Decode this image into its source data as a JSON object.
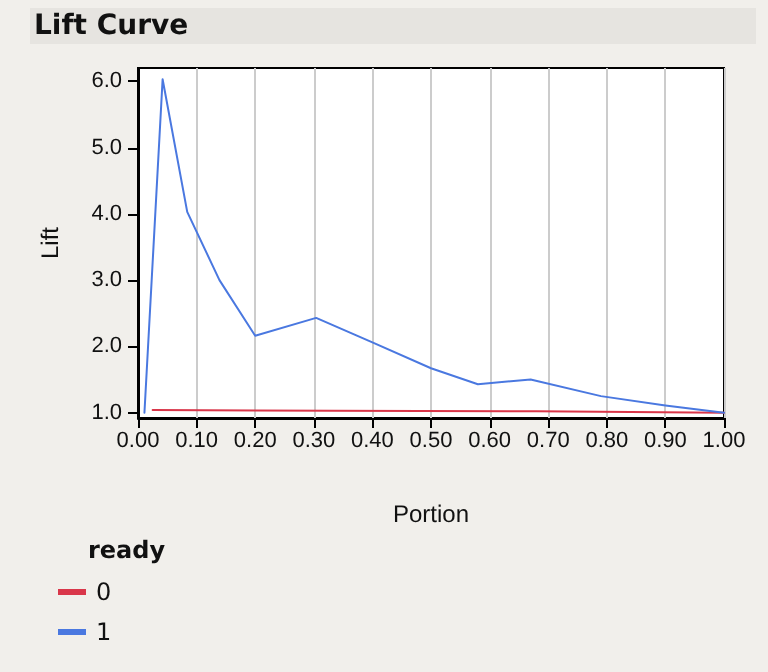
{
  "chart_data": {
    "type": "line",
    "title": "Lift Curve",
    "xlabel": "Portion",
    "ylabel": "Lift",
    "legend_title": "ready",
    "series": [
      {
        "name": "0",
        "color": "#d9364a",
        "x": [
          0.025,
          0.33,
          0.68,
          1.0
        ],
        "values": [
          1.04,
          1.03,
          1.02,
          1.0
        ]
      },
      {
        "name": "1",
        "color": "#4a78e0",
        "x": [
          0.011,
          0.042,
          0.084,
          0.139,
          0.2,
          0.304,
          0.4,
          0.5,
          0.58,
          0.67,
          0.79,
          0.9,
          1.0
        ],
        "values": [
          1.0,
          6.03,
          4.03,
          3.0,
          2.16,
          2.43,
          2.06,
          1.67,
          1.43,
          1.5,
          1.25,
          1.11,
          1.0
        ]
      }
    ],
    "xlim": [
      0,
      1
    ],
    "ylim": [
      0.92,
      6.2
    ],
    "xticks": [
      {
        "value": 0,
        "label": "0.00"
      },
      {
        "value": 0.1,
        "label": "0.10"
      },
      {
        "value": 0.2,
        "label": "0.20"
      },
      {
        "value": 0.3,
        "label": "0.30"
      },
      {
        "value": 0.4,
        "label": "0.40"
      },
      {
        "value": 0.5,
        "label": "0.50"
      },
      {
        "value": 0.6,
        "label": "0.60"
      },
      {
        "value": 0.7,
        "label": "0.70"
      },
      {
        "value": 0.8,
        "label": "0.80"
      },
      {
        "value": 0.9,
        "label": "0.90"
      },
      {
        "value": 1,
        "label": "1.00"
      }
    ],
    "yticks": [
      {
        "value": 1,
        "label": "1.0"
      },
      {
        "value": 2,
        "label": "2.0"
      },
      {
        "value": 3,
        "label": "3.0"
      },
      {
        "value": 4,
        "label": "4.0"
      },
      {
        "value": 5,
        "label": "5.0"
      },
      {
        "value": 6,
        "label": "6.0"
      }
    ],
    "grid": "x",
    "legend": "bottom left",
    "marker": "none",
    "line_style": "solid"
  }
}
